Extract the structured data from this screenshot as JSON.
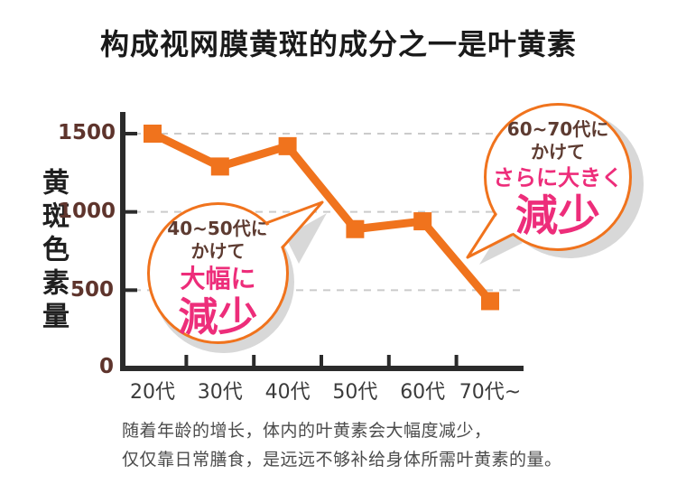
{
  "title": "构成视网膜黄斑的成分之一是叶黄素",
  "colors": {
    "orange": "#f0731d",
    "pink": "#ed2d7a",
    "brown": "#5d3b31",
    "maroon_ticks": "#5e342c",
    "axis": "#2b2b2b",
    "grid": "#cbcbcb",
    "bubble_shadow": "#d8d8d8",
    "x_label": "#3b3b3b",
    "caption": "#4b4b4b"
  },
  "chart_data": {
    "type": "line",
    "title": "构成视网膜黄斑的成分之一是叶黄素",
    "ylabel": "黄斑色素量",
    "xlabel": "",
    "categories": [
      "20代",
      "30代",
      "40代",
      "50代",
      "60代",
      "70代~"
    ],
    "values": [
      1500,
      1290,
      1420,
      890,
      940,
      430
    ],
    "y_ticks": [
      0,
      500,
      1000,
      1500
    ],
    "ylim": [
      0,
      1640
    ],
    "grid": "horizontal dashed",
    "legend": "none",
    "marker": "square",
    "line_color": "#f0731d"
  },
  "annotations": {
    "bubble1": {
      "line1": "40~50代に",
      "line2": "かけて",
      "line3": "大幅に",
      "line4": "減少"
    },
    "bubble2": {
      "line1": "60~70代に",
      "line2": "かけて",
      "line3": "さらに大きく",
      "line4": "減少"
    }
  },
  "caption": {
    "line1": "随着年龄的增长，体内的叶黄素会大幅度减少，",
    "line2": "仅仅靠日常膳食，是远远不够补给身体所需叶黄素的量。"
  }
}
